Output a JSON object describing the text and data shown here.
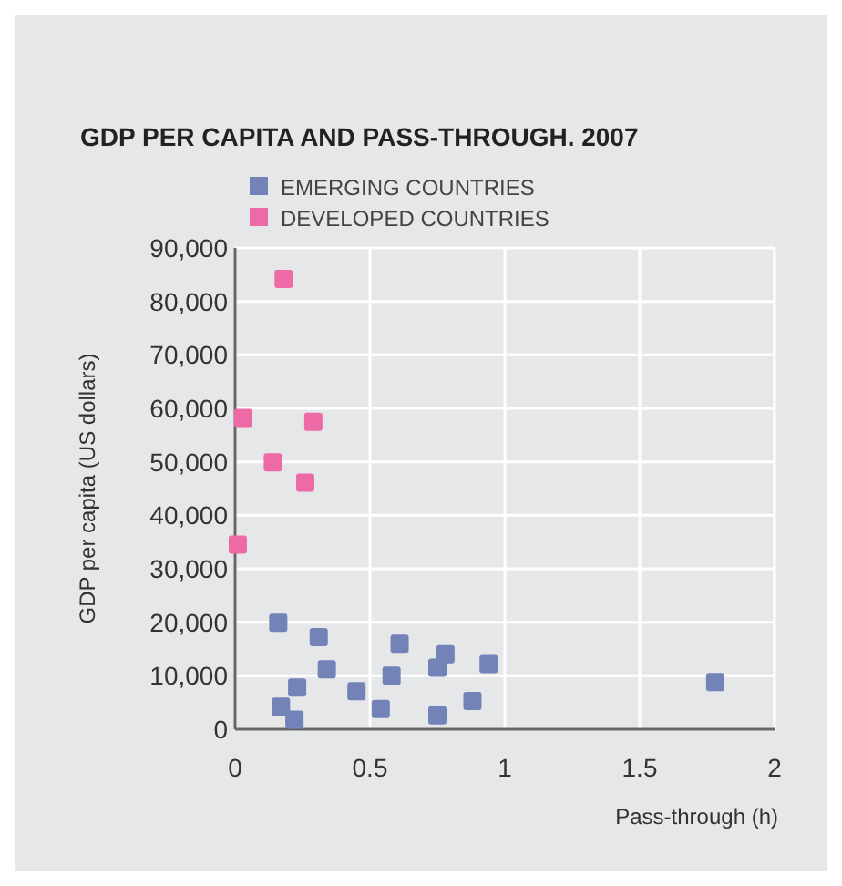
{
  "chart_data": {
    "type": "scatter",
    "title": "GDP PER CAPITA AND PASS-THROUGH. 2007",
    "xlabel": "Pass-through (h)",
    "ylabel": "GDP per capita (US dollars)",
    "xlim": [
      0,
      2
    ],
    "xticks": [
      0,
      0.5,
      1,
      1.5,
      2
    ],
    "ylim": [
      0,
      90000
    ],
    "yticks": [
      {
        "value": 0,
        "label": "0"
      },
      {
        "value": 10000,
        "label": "10,000"
      },
      {
        "value": 20000,
        "label": "20,000"
      },
      {
        "value": 30000,
        "label": "30,000"
      },
      {
        "value": 40000,
        "label": "40,000"
      },
      {
        "value": 50000,
        "label": "50,000"
      },
      {
        "value": 60000,
        "label": "60,000"
      },
      {
        "value": 70000,
        "label": "70,000"
      },
      {
        "value": 80000,
        "label": "80,000"
      },
      {
        "value": 90000,
        "label": "90,000"
      }
    ],
    "grid": true,
    "legend": "top",
    "marker": "square",
    "series": [
      {
        "name": "EMERGING COUNTRIES",
        "color": "#7383b8",
        "x": [
          0.16,
          0.31,
          0.61,
          0.78,
          0.75,
          0.94,
          0.34,
          0.58,
          0.23,
          0.45,
          0.17,
          0.22,
          0.54,
          0.75,
          0.88,
          1.78
        ],
        "values": [
          19900,
          17200,
          16000,
          14000,
          11500,
          12200,
          11200,
          10000,
          7800,
          7100,
          4200,
          1800,
          3800,
          2600,
          5300,
          8800
        ]
      },
      {
        "name": "DEVELOPED COUNTRIES",
        "color": "#ee6aa7",
        "x": [
          0.18,
          0.03,
          0.29,
          0.14,
          0.26,
          0.01
        ],
        "values": [
          84200,
          58200,
          57500,
          49900,
          46100,
          34500
        ]
      }
    ]
  }
}
